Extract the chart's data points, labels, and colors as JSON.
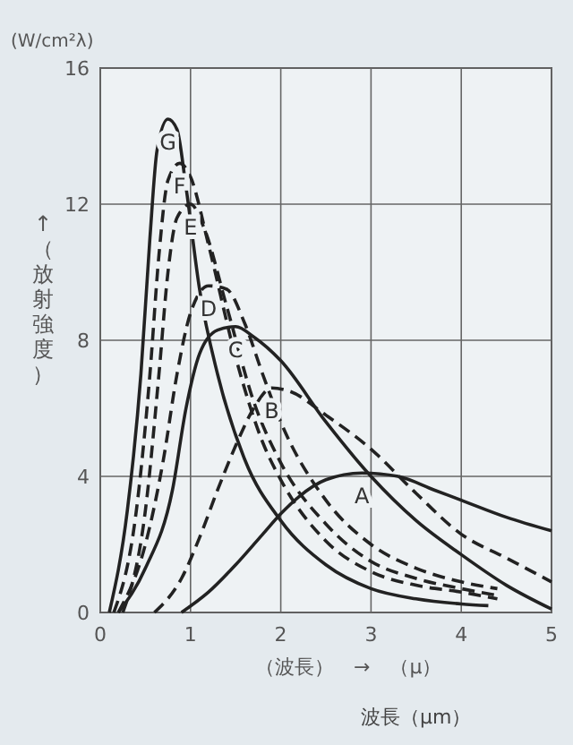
{
  "chart_data": {
    "type": "line",
    "ylabel": "↑（放射強度）",
    "xlabel": "波長（μm）",
    "annotations": [
      "(W/cm²λ)",
      "（波長）　→　（μ）"
    ],
    "xlim": [
      0,
      5
    ],
    "ylim": [
      0,
      16
    ],
    "xticks": [
      0,
      1,
      2,
      3,
      4,
      5
    ],
    "yticks": [
      0,
      4,
      8,
      12,
      16
    ],
    "grid": true,
    "series": [
      {
        "name": "A",
        "color": "#222222",
        "line_style": "solid",
        "x": [
          0.9,
          1.2,
          1.5,
          1.8,
          2.0,
          2.2,
          2.5,
          2.9,
          3.3,
          3.7,
          4.0,
          4.5,
          5.0
        ],
        "values": [
          0,
          0.6,
          1.4,
          2.3,
          2.9,
          3.4,
          3.9,
          4.1,
          4.0,
          3.6,
          3.3,
          2.8,
          2.4
        ]
      },
      {
        "name": "B",
        "color": "#222222",
        "line_style": "dashed",
        "x": [
          0.6,
          0.9,
          1.1,
          1.3,
          1.5,
          1.7,
          1.9,
          2.1,
          2.5,
          3.0,
          3.5,
          4.0,
          4.5,
          5.0
        ],
        "values": [
          0,
          1.0,
          2.2,
          3.6,
          4.9,
          6.0,
          6.6,
          6.5,
          5.8,
          4.8,
          3.5,
          2.3,
          1.6,
          0.9
        ]
      },
      {
        "name": "C",
        "color": "#222222",
        "line_style": "solid",
        "x": [
          0.2,
          0.5,
          0.8,
          0.95,
          1.1,
          1.3,
          1.5,
          1.7,
          2.0,
          2.5,
          3.0,
          3.5,
          4.0,
          4.5,
          5.0
        ],
        "values": [
          0,
          1.3,
          3.6,
          6.0,
          7.6,
          8.3,
          8.4,
          8.1,
          7.4,
          5.6,
          4.0,
          2.7,
          1.7,
          0.8,
          0.1
        ]
      },
      {
        "name": "D",
        "color": "#222222",
        "line_style": "dashed",
        "x": [
          0.2,
          0.5,
          0.7,
          0.85,
          1.0,
          1.2,
          1.4,
          1.6,
          1.8,
          2.0,
          2.5,
          3.0,
          3.5,
          4.0,
          4.4
        ],
        "values": [
          0,
          2,
          4.5,
          7,
          8.8,
          9.6,
          9.5,
          8.5,
          7.0,
          5.6,
          3.3,
          2.0,
          1.3,
          0.9,
          0.7
        ]
      },
      {
        "name": "E",
        "color": "#222222",
        "line_style": "dashed",
        "x": [
          0.25,
          0.5,
          0.65,
          0.75,
          0.85,
          1.0,
          1.15,
          1.4,
          1.7,
          2.0,
          2.5,
          3.0,
          3.5,
          4.0,
          4.4
        ],
        "values": [
          0,
          3,
          7,
          10,
          11.6,
          12.0,
          11.3,
          9,
          6.2,
          4.4,
          2.6,
          1.5,
          1.0,
          0.7,
          0.5
        ]
      },
      {
        "name": "F",
        "color": "#222222",
        "line_style": "dashed",
        "x": [
          0.15,
          0.4,
          0.55,
          0.65,
          0.75,
          0.88,
          1.0,
          1.2,
          1.5,
          1.8,
          2.0,
          2.5,
          3.0,
          3.5,
          4.0,
          4.4
        ],
        "values": [
          0,
          3,
          7,
          10.5,
          12.7,
          13.2,
          12.8,
          10.8,
          7.5,
          5.0,
          3.9,
          2.1,
          1.2,
          0.8,
          0.6,
          0.4
        ]
      },
      {
        "name": "G",
        "color": "#222222",
        "line_style": "solid",
        "x": [
          0.1,
          0.3,
          0.45,
          0.55,
          0.63,
          0.75,
          0.85,
          0.95,
          1.1,
          1.3,
          1.6,
          2.0,
          2.5,
          3.0,
          3.5,
          4.0,
          4.3
        ],
        "values": [
          0,
          3,
          7,
          11,
          13.6,
          14.5,
          14.2,
          12.5,
          9.5,
          7.0,
          4.5,
          2.7,
          1.4,
          0.7,
          0.4,
          0.25,
          0.2
        ]
      }
    ]
  }
}
